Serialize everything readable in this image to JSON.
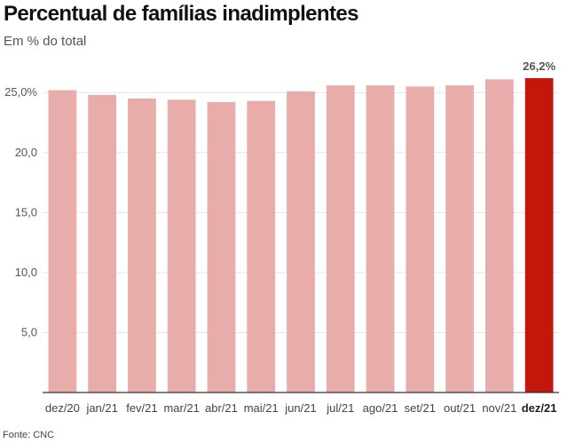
{
  "title": "Percentual de famílias inadimplentes",
  "subtitle": "Em % do total",
  "source": "Fonte: CNC",
  "colors": {
    "bar": "#e8adaa",
    "bar_highlight": "#c4170c",
    "gridline": "#e6e6e6",
    "axis": "#333333"
  },
  "chart_data": {
    "type": "bar",
    "categories": [
      "dez/20",
      "jan/21",
      "fev/21",
      "mar/21",
      "abr/21",
      "mai/21",
      "jun/21",
      "jul/21",
      "ago/21",
      "set/21",
      "out/21",
      "nov/21",
      "dez/21"
    ],
    "values": [
      25.2,
      24.8,
      24.5,
      24.4,
      24.2,
      24.3,
      25.1,
      25.6,
      25.6,
      25.5,
      25.6,
      26.1,
      26.2
    ],
    "highlight_index": 12,
    "data_labels": [
      {
        "index": 12,
        "text": "26,2%"
      }
    ],
    "y_ticks": [
      {
        "value": 5,
        "label": "5,0"
      },
      {
        "value": 10,
        "label": "10,0"
      },
      {
        "value": 15,
        "label": "15,0"
      },
      {
        "value": 20,
        "label": "20,0"
      },
      {
        "value": 25,
        "label": "25,0%"
      }
    ],
    "ylim": [
      0,
      26.2
    ],
    "grid": true,
    "xlabel": "",
    "ylabel": ""
  }
}
